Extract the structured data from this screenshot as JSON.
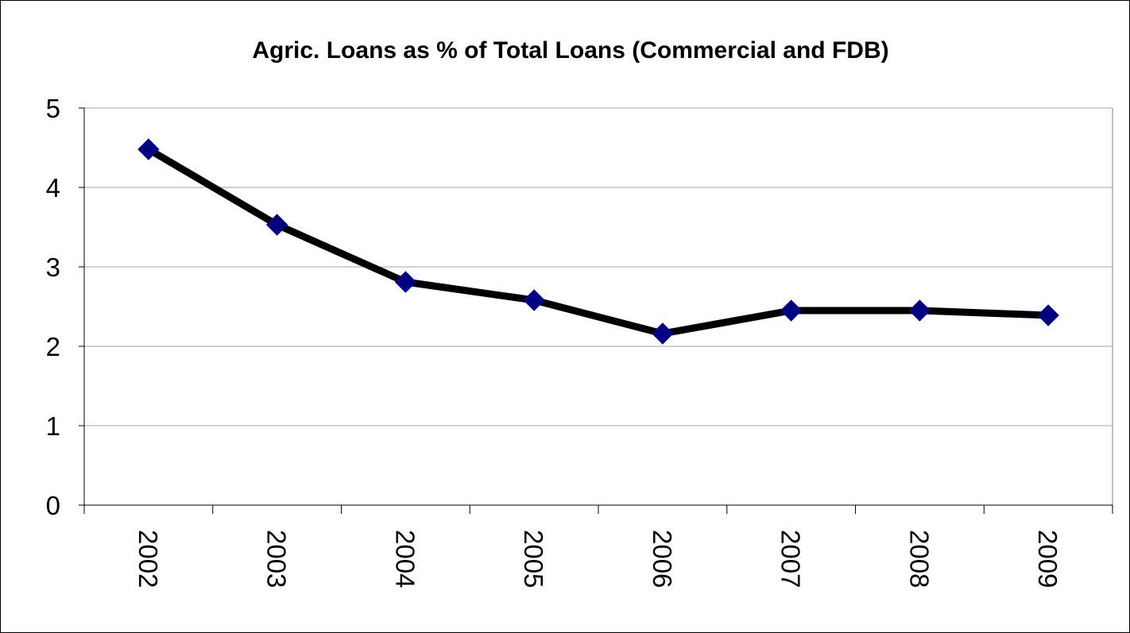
{
  "chart_data": {
    "type": "line",
    "title": "Agric. Loans as % of Total Loans (Commercial and FDB)",
    "xlabel": "",
    "ylabel": "",
    "categories": [
      "2002",
      "2003",
      "2004",
      "2005",
      "2006",
      "2007",
      "2008",
      "2009"
    ],
    "series": [
      {
        "values": [
          4.48,
          3.53,
          2.81,
          2.58,
          2.16,
          2.45,
          2.45,
          2.39
        ]
      }
    ],
    "ylim": [
      0,
      5
    ],
    "yticks": [
      "0",
      "1",
      "2",
      "3",
      "4",
      "5"
    ],
    "grid": true,
    "legend": "none",
    "line_color": "#000000",
    "marker_color": "#000080",
    "marker": "diamond",
    "plot_background": "#ffffff",
    "gridline_color": "#a0a0a0"
  }
}
